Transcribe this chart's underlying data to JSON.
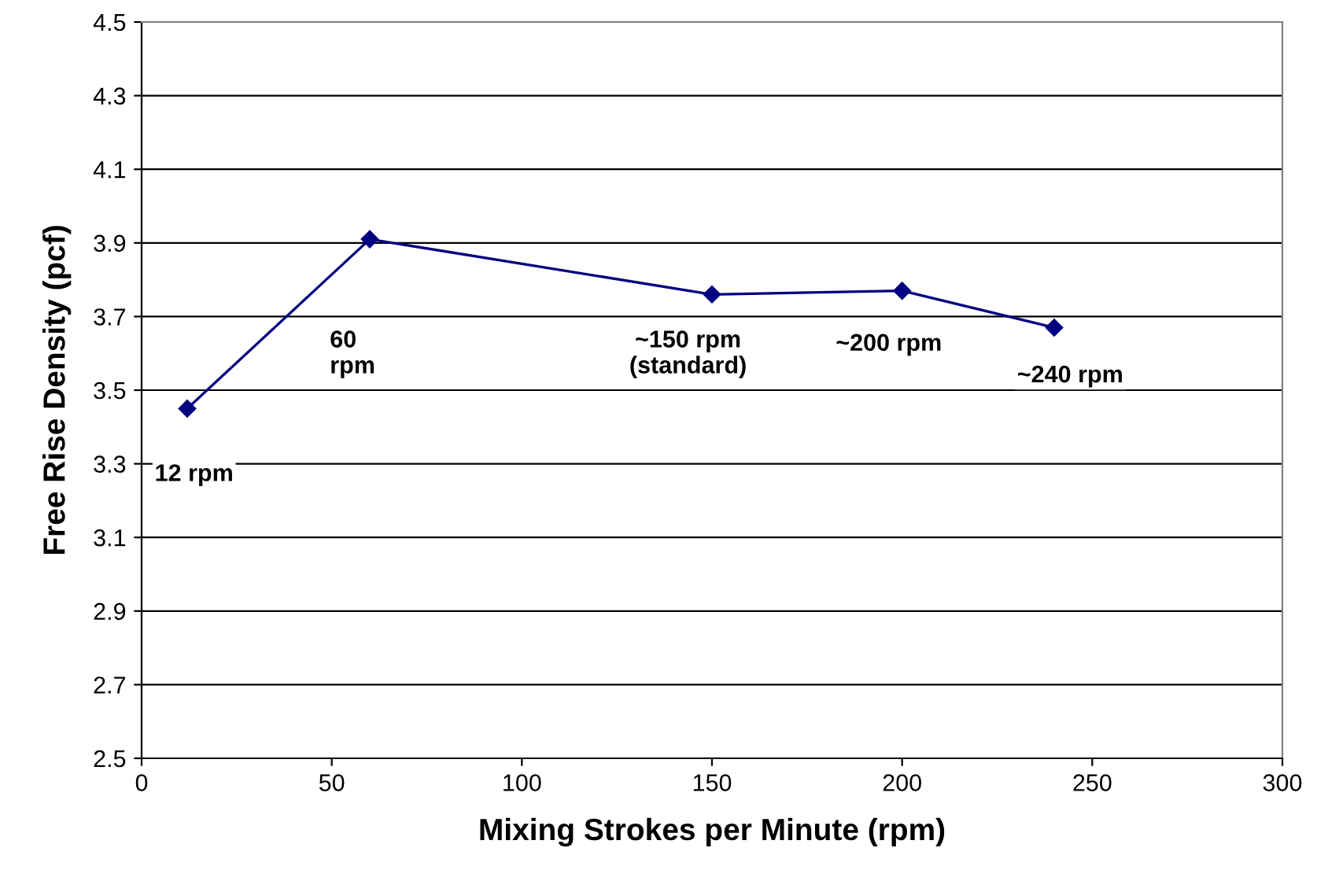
{
  "chart_data": {
    "type": "line",
    "xlabel": "Mixing Strokes per Minute (rpm)",
    "ylabel": "Free Rise Density (pcf)",
    "x": [
      12,
      60,
      150,
      200,
      240
    ],
    "series": [
      {
        "color": "#000080",
        "values": [
          3.45,
          3.91,
          3.76,
          3.77,
          3.67
        ]
      }
    ],
    "xlim": [
      0,
      300
    ],
    "xticks": [
      0,
      50,
      100,
      150,
      200,
      250,
      300
    ],
    "ylim": [
      2.5,
      4.5
    ],
    "yticks": [
      2.5,
      2.7,
      2.9,
      3.1,
      3.3,
      3.5,
      3.7,
      3.9,
      4.1,
      4.3,
      4.5
    ],
    "grid": "y",
    "marker": "diamond",
    "line_style": "solid",
    "legend": false,
    "annotations": [
      "12 rpm",
      "60\nrpm",
      "~150 rpm\n(standard)",
      "~200 rpm",
      "~240 rpm"
    ]
  }
}
